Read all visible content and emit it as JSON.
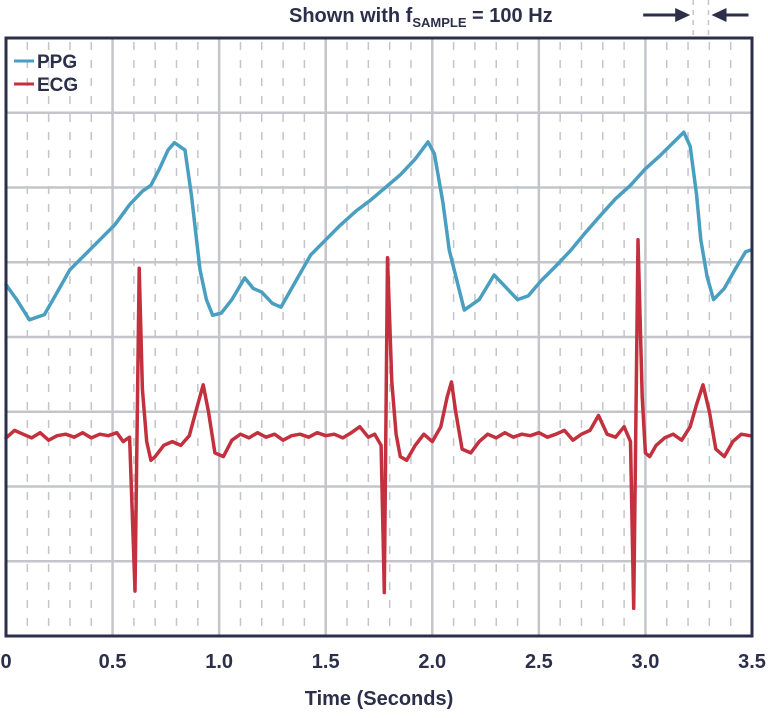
{
  "chart_data": {
    "type": "line",
    "title": "",
    "annotation": {
      "prefix": "Shown with f",
      "subscript": "SAMPLE",
      "suffix": " = 100 Hz",
      "interval_seconds": [
        3.21,
        3.31
      ]
    },
    "xlabel": "Time (Seconds)",
    "ylabel": "",
    "xlim": [
      0,
      3.5
    ],
    "ylim": [
      0,
      8
    ],
    "xticks": [
      "0",
      "0.5",
      "1.0",
      "1.5",
      "2.0",
      "2.5",
      "3.0",
      "3.5"
    ],
    "grid": true,
    "legend_position": "top-left",
    "colors": {
      "axis": "#2b2f4a",
      "grid": "#c4c5ca",
      "ppg": "#4a9ec0",
      "ecg": "#c3303e"
    },
    "series": [
      {
        "name": "PPG",
        "x": [
          0,
          0.05,
          0.11,
          0.18,
          0.24,
          0.3,
          0.37,
          0.44,
          0.51,
          0.58,
          0.64,
          0.68,
          0.72,
          0.76,
          0.79,
          0.84,
          0.87,
          0.91,
          0.94,
          0.97,
          1.01,
          1.06,
          1.12,
          1.16,
          1.2,
          1.25,
          1.29,
          1.36,
          1.43,
          1.5,
          1.57,
          1.64,
          1.71,
          1.78,
          1.85,
          1.92,
          1.98,
          2.01,
          2.05,
          2.08,
          2.12,
          2.15,
          2.22,
          2.29,
          2.34,
          2.4,
          2.45,
          2.51,
          2.58,
          2.65,
          2.72,
          2.79,
          2.86,
          2.93,
          3.0,
          3.07,
          3.13,
          3.18,
          3.21,
          3.24,
          3.26,
          3.29,
          3.32,
          3.37,
          3.42,
          3.47,
          3.49
        ],
        "y": [
          4.7,
          4.5,
          4.23,
          4.3,
          4.6,
          4.9,
          5.1,
          5.3,
          5.5,
          5.77,
          5.95,
          6.03,
          6.25,
          6.5,
          6.6,
          6.5,
          5.9,
          4.9,
          4.5,
          4.29,
          4.32,
          4.5,
          4.79,
          4.65,
          4.6,
          4.45,
          4.4,
          4.75,
          5.1,
          5.3,
          5.5,
          5.68,
          5.83,
          6.0,
          6.17,
          6.38,
          6.61,
          6.45,
          5.8,
          5.16,
          4.7,
          4.36,
          4.5,
          4.83,
          4.68,
          4.5,
          4.55,
          4.75,
          4.95,
          5.16,
          5.4,
          5.63,
          5.85,
          6.03,
          6.25,
          6.43,
          6.6,
          6.74,
          6.55,
          5.9,
          5.3,
          4.8,
          4.5,
          4.65,
          4.9,
          5.14,
          5.16
        ]
      },
      {
        "name": "ECG",
        "x": [
          0,
          0.04,
          0.08,
          0.12,
          0.16,
          0.2,
          0.24,
          0.28,
          0.32,
          0.36,
          0.4,
          0.44,
          0.48,
          0.52,
          0.55,
          0.58,
          0.605,
          0.625,
          0.64,
          0.66,
          0.68,
          0.7,
          0.74,
          0.78,
          0.82,
          0.86,
          0.9,
          0.925,
          0.95,
          0.98,
          1.02,
          1.06,
          1.1,
          1.14,
          1.18,
          1.22,
          1.26,
          1.3,
          1.34,
          1.38,
          1.42,
          1.46,
          1.5,
          1.54,
          1.58,
          1.62,
          1.66,
          1.7,
          1.73,
          1.76,
          1.775,
          1.79,
          1.81,
          1.83,
          1.85,
          1.88,
          1.92,
          1.96,
          2.0,
          2.04,
          2.07,
          2.09,
          2.11,
          2.14,
          2.18,
          2.22,
          2.26,
          2.3,
          2.34,
          2.38,
          2.42,
          2.46,
          2.5,
          2.54,
          2.58,
          2.62,
          2.66,
          2.7,
          2.74,
          2.78,
          2.82,
          2.86,
          2.9,
          2.93,
          2.945,
          2.965,
          2.985,
          3.0,
          3.02,
          3.05,
          3.09,
          3.13,
          3.17,
          3.21,
          3.24,
          3.27,
          3.3,
          3.33,
          3.37,
          3.41,
          3.45,
          3.49
        ],
        "y": [
          2.65,
          2.75,
          2.7,
          2.65,
          2.72,
          2.62,
          2.68,
          2.7,
          2.66,
          2.72,
          2.65,
          2.7,
          2.68,
          2.72,
          2.6,
          2.66,
          0.6,
          4.92,
          3.3,
          2.6,
          2.35,
          2.4,
          2.55,
          2.6,
          2.55,
          2.68,
          3.1,
          3.36,
          3.0,
          2.45,
          2.4,
          2.62,
          2.7,
          2.65,
          2.72,
          2.66,
          2.7,
          2.62,
          2.68,
          2.7,
          2.66,
          2.72,
          2.68,
          2.7,
          2.65,
          2.72,
          2.8,
          2.66,
          2.7,
          2.55,
          0.58,
          5.06,
          3.4,
          2.7,
          2.4,
          2.35,
          2.55,
          2.7,
          2.6,
          2.8,
          3.2,
          3.4,
          3.0,
          2.5,
          2.45,
          2.6,
          2.7,
          2.65,
          2.72,
          2.66,
          2.7,
          2.68,
          2.72,
          2.66,
          2.7,
          2.75,
          2.62,
          2.7,
          2.75,
          2.95,
          2.7,
          2.66,
          2.8,
          2.6,
          0.37,
          5.3,
          3.2,
          2.45,
          2.4,
          2.55,
          2.65,
          2.7,
          2.62,
          2.8,
          3.1,
          3.36,
          3.0,
          2.5,
          2.4,
          2.6,
          2.7,
          2.68
        ]
      }
    ]
  }
}
